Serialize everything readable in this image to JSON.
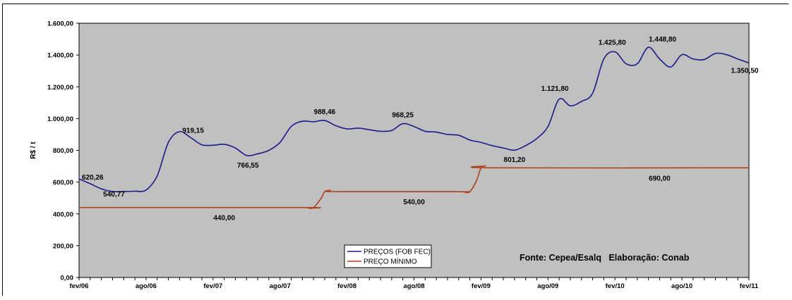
{
  "chart_data": {
    "type": "line",
    "title": "",
    "xlabel": "",
    "ylabel": "R$ / t",
    "ylim": [
      0,
      1600
    ],
    "yticks": [
      "0,00",
      "200,00",
      "400,00",
      "600,00",
      "800,00",
      "1.000,00",
      "1.200,00",
      "1.400,00",
      "1.600,00"
    ],
    "xticks": [
      "fev/06",
      "ago/06",
      "fev/07",
      "ago/07",
      "fev/08",
      "ago/08",
      "fev/09",
      "ago/09",
      "fev/10",
      "ago/10",
      "fev/11"
    ],
    "x_months_range": [
      0,
      60
    ],
    "grid": false,
    "background": "#c0c0c0",
    "legend_position": "bottom-center",
    "source_note": "Fonte: Cepea/Esalq   Elaboração: Conab",
    "series": [
      {
        "name": "PREÇOS (FOB FEC)",
        "color": "#1a1a8c",
        "points": [
          [
            0,
            620
          ],
          [
            1,
            590
          ],
          [
            2,
            558
          ],
          [
            3,
            541
          ],
          [
            4,
            541
          ],
          [
            5,
            543
          ],
          [
            6,
            550
          ],
          [
            7,
            640
          ],
          [
            8,
            850
          ],
          [
            9,
            918
          ],
          [
            10,
            880
          ],
          [
            11,
            835
          ],
          [
            12,
            832
          ],
          [
            13,
            838
          ],
          [
            14,
            815
          ],
          [
            15,
            768
          ],
          [
            16,
            778
          ],
          [
            17,
            800
          ],
          [
            18,
            850
          ],
          [
            19,
            950
          ],
          [
            20,
            983
          ],
          [
            21,
            980
          ],
          [
            22,
            988
          ],
          [
            23,
            955
          ],
          [
            24,
            935
          ],
          [
            25,
            940
          ],
          [
            26,
            930
          ],
          [
            27,
            920
          ],
          [
            28,
            925
          ],
          [
            29,
            968
          ],
          [
            30,
            950
          ],
          [
            31,
            920
          ],
          [
            32,
            915
          ],
          [
            33,
            900
          ],
          [
            34,
            895
          ],
          [
            35,
            865
          ],
          [
            36,
            850
          ],
          [
            37,
            830
          ],
          [
            38,
            815
          ],
          [
            39,
            801
          ],
          [
            40,
            830
          ],
          [
            41,
            875
          ],
          [
            42,
            950
          ],
          [
            43,
            1122
          ],
          [
            44,
            1080
          ],
          [
            45,
            1108
          ],
          [
            46,
            1160
          ],
          [
            47,
            1375
          ],
          [
            48,
            1420
          ],
          [
            49,
            1345
          ],
          [
            50,
            1345
          ],
          [
            51,
            1449
          ],
          [
            52,
            1375
          ],
          [
            53,
            1325
          ],
          [
            54,
            1402
          ],
          [
            55,
            1375
          ],
          [
            56,
            1372
          ],
          [
            57,
            1410
          ],
          [
            58,
            1402
          ],
          [
            59,
            1375
          ],
          [
            60,
            1350
          ]
        ],
        "labels": [
          {
            "x": 0,
            "y": 620.26,
            "text": "620,26"
          },
          {
            "x": 3,
            "y": 540.77,
            "text": "540,77"
          },
          {
            "x": 9,
            "y": 919.15,
            "text": "919,15"
          },
          {
            "x": 15,
            "y": 766.55,
            "text": "766,55"
          },
          {
            "x": 22,
            "y": 988.46,
            "text": "988,46"
          },
          {
            "x": 29,
            "y": 968.25,
            "text": "968,25"
          },
          {
            "x": 39,
            "y": 801.2,
            "text": "801,20"
          },
          {
            "x": 43,
            "y": 1121.8,
            "text": "1.121,80"
          },
          {
            "x": 48,
            "y": 1425.8,
            "text": "1.425,80"
          },
          {
            "x": 51,
            "y": 1448.8,
            "text": "1.448,80"
          },
          {
            "x": 60,
            "y": 1350.5,
            "text": "1.350,50"
          }
        ]
      },
      {
        "name": "PREÇO MÍNIMO",
        "color": "#b0401c",
        "points": [
          [
            0,
            440
          ],
          [
            20,
            440
          ],
          [
            20.5,
            437
          ],
          [
            21,
            440
          ],
          [
            21.7,
            500
          ],
          [
            22,
            540
          ],
          [
            22.5,
            548
          ],
          [
            23,
            540
          ],
          [
            34,
            540
          ],
          [
            34.5,
            537
          ],
          [
            35,
            540
          ],
          [
            35.6,
            610
          ],
          [
            36,
            690
          ],
          [
            36.4,
            702
          ],
          [
            37,
            690
          ],
          [
            60,
            690
          ]
        ],
        "labels": [
          {
            "x": 13,
            "y": 440,
            "text": "440,00"
          },
          {
            "x": 30,
            "y": 540,
            "text": "540,00"
          },
          {
            "x": 52,
            "y": 690,
            "text": "690,00"
          }
        ]
      }
    ]
  }
}
